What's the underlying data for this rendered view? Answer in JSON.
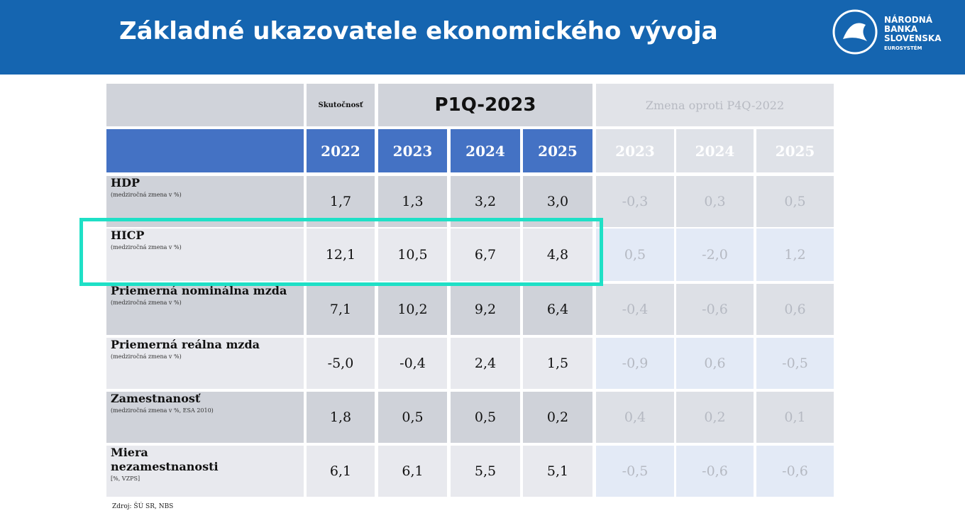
{
  "header": {
    "title": "Základné ukazovatele ekonomického vývoja",
    "logo": [
      "NÁRODNÁ",
      "BANKA",
      "SLOVENSKA",
      "EUROSYSTÉM"
    ]
  },
  "table": {
    "groups": [
      "Skutočnosť",
      "P1Q-2023",
      "Zmena oproti P4Q-2022"
    ],
    "years": [
      "2022",
      "2023",
      "2024",
      "2025",
      "2023",
      "2024",
      "2025"
    ],
    "rows": [
      {
        "label": "HDP",
        "note": "(medziročná zmena v %)",
        "values": [
          "1,7",
          "1,3",
          "3,2",
          "3,0",
          "-0,3",
          "0,3",
          "0,5"
        ]
      },
      {
        "label": "HICP",
        "note": "(medziročná zmena v %)",
        "values": [
          "12,1",
          "10,5",
          "6,7",
          "4,8",
          "0,5",
          "-2,0",
          "1,2"
        ]
      },
      {
        "label": "Priemerná nominálna mzda",
        "note": "(medziročná zmena v %)",
        "values": [
          "7,1",
          "10,2",
          "9,2",
          "6,4",
          "-0,4",
          "-0,6",
          "0,6"
        ]
      },
      {
        "label": "Priemerná reálna mzda",
        "note": "(medziročná zmena v %)",
        "values": [
          "-5,0",
          "-0,4",
          "2,4",
          "1,5",
          "-0,9",
          "0,6",
          "-0,5"
        ]
      },
      {
        "label": "Zamestnanosť",
        "note": "(medziročná zmena v %, ESA 2010)",
        "values": [
          "1,8",
          "0,5",
          "0,5",
          "0,2",
          "0,4",
          "0,2",
          "0,1"
        ]
      },
      {
        "label": "Miera nezamestnanosti",
        "note": "[%, VZPS]",
        "values": [
          "6,1",
          "6,1",
          "5,5",
          "5,1",
          "-0,5",
          "-0,6",
          "-0,6"
        ]
      }
    ],
    "source": "Zdroj: ŠÚ SR, NBS"
  }
}
